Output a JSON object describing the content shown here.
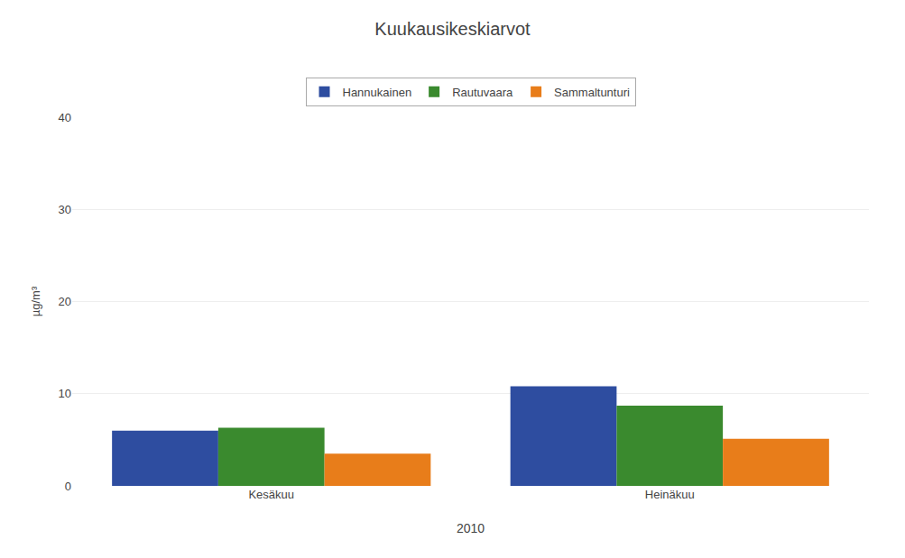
{
  "chart_data": {
    "type": "bar",
    "title": "Kuukausikeskiarvot",
    "xlabel": "2010",
    "ylabel": "µg/m³",
    "categories": [
      "Kesäkuu",
      "Heinäkuu"
    ],
    "series": [
      {
        "name": "Hannukainen",
        "color": "#2E4DA0",
        "values": [
          6.0,
          10.8
        ]
      },
      {
        "name": "Rautuvaara",
        "color": "#3A8A2E",
        "values": [
          6.3,
          8.7
        ]
      },
      {
        "name": "Sammaltunturi",
        "color": "#E87D1A",
        "values": [
          3.5,
          5.1
        ]
      }
    ],
    "ylim": [
      0,
      40
    ],
    "yticks": [
      0,
      10,
      20,
      30,
      40
    ],
    "grid": true,
    "legend": "top"
  }
}
